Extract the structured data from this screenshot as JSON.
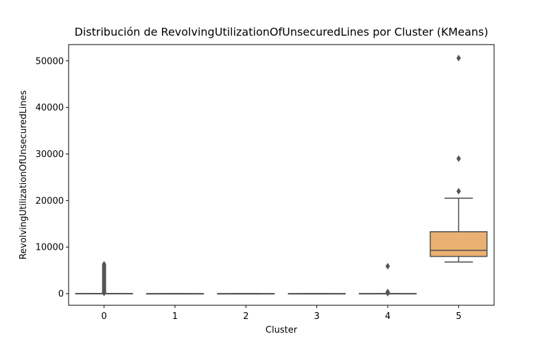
{
  "chart_data": {
    "type": "box",
    "title": "Distribución de RevolvingUtilizationOfUnsecuredLines por Cluster (KMeans)",
    "xlabel": "Cluster",
    "ylabel": "RevolvingUtilizationOfUnsecuredLines",
    "categories": [
      "0",
      "1",
      "2",
      "3",
      "4",
      "5"
    ],
    "ylim": [
      -2500,
      53500
    ],
    "yticks": [
      0,
      10000,
      20000,
      30000,
      40000,
      50000
    ],
    "yticklabels": [
      "0",
      "10000",
      "20000",
      "30000",
      "40000",
      "50000"
    ],
    "grid": false,
    "boxes": [
      {
        "category": "0",
        "color": "#ffffff",
        "whislo": 0,
        "q1": 0,
        "med": 0,
        "q3": 30,
        "whishi": 40,
        "fliers": [
          6300,
          6000,
          5700,
          5400,
          5100,
          4800,
          4500,
          4200,
          3900,
          3600,
          3300,
          3000,
          2700,
          2400,
          2100,
          1800,
          1500,
          1200,
          900,
          600,
          300,
          150
        ]
      },
      {
        "category": "1",
        "color": "#ffffff",
        "whislo": 0,
        "q1": 0,
        "med": 0,
        "q3": 0,
        "whishi": 0,
        "fliers": []
      },
      {
        "category": "2",
        "color": "#ffffff",
        "whislo": 0,
        "q1": 0,
        "med": 0,
        "q3": 0,
        "whishi": 0,
        "fliers": []
      },
      {
        "category": "3",
        "color": "#ffffff",
        "whislo": 0,
        "q1": 0,
        "med": 0,
        "q3": 0,
        "whishi": 0,
        "fliers": []
      },
      {
        "category": "4",
        "color": "#ffffff",
        "whislo": 0,
        "q1": 0,
        "med": 0,
        "q3": 20,
        "whishi": 30,
        "fliers": [
          5900,
          350,
          200,
          100
        ]
      },
      {
        "category": "5",
        "color": "#ebb172",
        "whislo": 6800,
        "q1": 8000,
        "med": 9300,
        "q3": 13300,
        "whishi": 20500,
        "fliers": [
          22000,
          29000,
          50600
        ]
      }
    ]
  }
}
